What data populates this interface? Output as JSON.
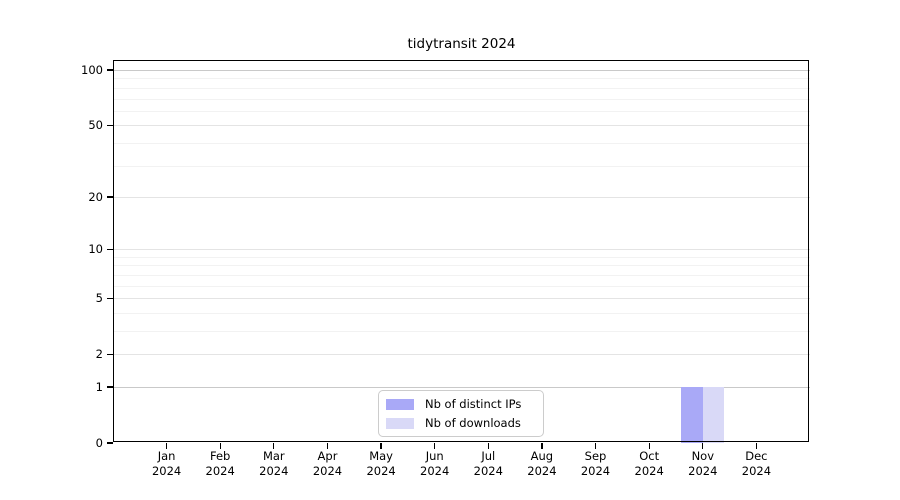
{
  "title": "tidytransit 2024",
  "chart_data": {
    "type": "bar",
    "title": "tidytransit 2024",
    "x_axis": {
      "categories": [
        "Jan",
        "Feb",
        "Mar",
        "Apr",
        "May",
        "Jun",
        "Jul",
        "Aug",
        "Sep",
        "Oct",
        "Nov",
        "Dec"
      ],
      "year_label": "2024"
    },
    "y_axis": {
      "scale": "log1p",
      "major_ticks": [
        0,
        1,
        2,
        5,
        10,
        20,
        50,
        100
      ],
      "minor_gridlines": [
        3,
        4,
        6,
        7,
        8,
        9,
        30,
        40,
        60,
        70,
        80,
        90
      ],
      "ylim": [
        0,
        113
      ],
      "grid": true
    },
    "series": [
      {
        "name": "Nb of distinct IPs",
        "color": "#a9a9f7",
        "values": [
          0,
          0,
          0,
          0,
          0,
          0,
          0,
          0,
          0,
          0,
          1,
          0
        ]
      },
      {
        "name": "Nb of downloads",
        "color": "#d9d9f7",
        "values": [
          0,
          0,
          0,
          0,
          0,
          0,
          0,
          0,
          0,
          0,
          1,
          0
        ]
      }
    ],
    "legend": {
      "position": "lower center",
      "entries": [
        "Nb of distinct IPs",
        "Nb of downloads"
      ]
    },
    "grid_colors": {
      "emphasis": "#c9c9c9",
      "major": "#e4e4e4",
      "minor": "#f2f2f2"
    }
  }
}
